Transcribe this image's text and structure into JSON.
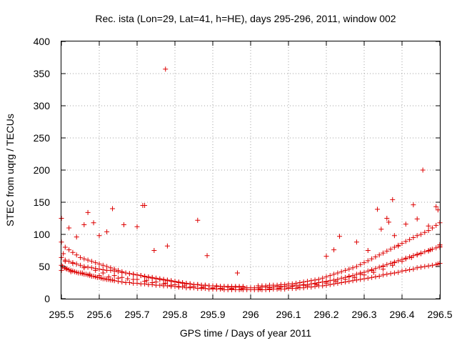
{
  "chart_data": {
    "type": "scatter",
    "title": "Rec. ista (Lon=29, Lat=41, h=HE), days 295-296, 2011, window 002",
    "xlabel": "GPS time / Days of year 2011",
    "ylabel": "STEC from uqrg / TECUs",
    "xlim": [
      295.5,
      296.5
    ],
    "ylim": [
      0,
      400
    ],
    "xticks": [
      "295.5",
      "295.6",
      "295.7",
      "295.8",
      "295.9",
      "296",
      "296.1",
      "296.2",
      "296.3",
      "296.4",
      "296.5"
    ],
    "yticks": [
      "0",
      "50",
      "100",
      "150",
      "200",
      "250",
      "300",
      "350",
      "400"
    ],
    "grid": true,
    "legend": "none",
    "marker": "plus",
    "color": "#dd0000",
    "series": [
      {
        "x": [
          295.5,
          295.503,
          295.508,
          295.512,
          295.515,
          295.52,
          295.525,
          295.53,
          295.535,
          295.54,
          295.545,
          295.55,
          295.555,
          295.56,
          295.565,
          295.57,
          295.575,
          295.58,
          295.585,
          295.59,
          295.595,
          295.6,
          295.605,
          295.61,
          295.615,
          295.62,
          295.625,
          295.63,
          295.635,
          295.64,
          295.65,
          295.66,
          295.67,
          295.68,
          295.69,
          295.7,
          295.71,
          295.72,
          295.73,
          295.74,
          295.75,
          295.76,
          295.77,
          295.78,
          295.79,
          295.8,
          295.81,
          295.82,
          295.83,
          295.84,
          295.85,
          295.86,
          295.87,
          295.88,
          295.89,
          295.9,
          295.91,
          295.92,
          295.93,
          295.94,
          295.95,
          295.96,
          295.97,
          295.98,
          295.99,
          296.0,
          296.01,
          296.02,
          296.03,
          296.04,
          296.05,
          296.06,
          296.07,
          296.08,
          296.09,
          296.1,
          296.11,
          296.12,
          296.13,
          296.14,
          296.15,
          296.16,
          296.17,
          296.18,
          296.19,
          296.2,
          296.21,
          296.22,
          296.23,
          296.24,
          296.25,
          296.26,
          296.27,
          296.28,
          296.29,
          296.3,
          296.31,
          296.32,
          296.33,
          296.34,
          296.35,
          296.36,
          296.37,
          296.38,
          296.39,
          296.4,
          296.41,
          296.42,
          296.43,
          296.44,
          296.45,
          296.46,
          296.47,
          296.48,
          296.49,
          296.495,
          296.5
        ],
        "y": [
          52,
          50,
          48,
          47,
          46,
          45,
          44,
          43,
          42,
          41,
          40,
          40,
          39,
          38,
          38,
          37,
          36,
          35,
          35,
          34,
          33,
          33,
          32,
          31,
          31,
          30,
          30,
          29,
          29,
          28,
          27,
          26,
          25,
          25,
          24,
          24,
          23,
          23,
          22,
          22,
          21,
          21,
          20,
          20,
          19,
          19,
          18,
          18,
          17,
          17,
          17,
          16,
          16,
          16,
          15,
          15,
          15,
          15,
          14,
          14,
          14,
          14,
          14,
          14,
          14,
          14,
          14,
          14,
          14,
          14,
          14,
          15,
          15,
          15,
          15,
          16,
          16,
          16,
          17,
          17,
          18,
          18,
          19,
          20,
          20,
          21,
          22,
          23,
          24,
          25,
          26,
          27,
          28,
          29,
          30,
          31,
          32,
          33,
          34,
          35,
          37,
          38,
          39,
          40,
          41,
          43,
          44,
          45,
          46,
          48,
          49,
          50,
          51,
          52,
          53,
          54,
          55
        ]
      },
      {
        "x": [
          295.5,
          295.505,
          295.51,
          295.52,
          295.53,
          295.54,
          295.55,
          295.56,
          295.57,
          295.58,
          295.59,
          295.6,
          295.61,
          295.62,
          295.63,
          295.64,
          295.65,
          295.66,
          295.67,
          295.68,
          295.69,
          295.7,
          295.71,
          295.72,
          295.73,
          295.74,
          295.75,
          295.76,
          295.77,
          295.78,
          295.79,
          295.8,
          295.81,
          295.82,
          295.83,
          295.84,
          295.85,
          295.86,
          295.87,
          295.88,
          295.89,
          295.9,
          295.91,
          295.92,
          295.93,
          295.94,
          295.95,
          295.96,
          295.97,
          295.98,
          295.99,
          296.0,
          296.01,
          296.02,
          296.03,
          296.04,
          296.05,
          296.06,
          296.07,
          296.08,
          296.09,
          296.1,
          296.11,
          296.12,
          296.13,
          296.14,
          296.15,
          296.16,
          296.17,
          296.18,
          296.19,
          296.2,
          296.21,
          296.22,
          296.23,
          296.24,
          296.25,
          296.26,
          296.27,
          296.28,
          296.29,
          296.3,
          296.31,
          296.32,
          296.33,
          296.34,
          296.35,
          296.36,
          296.37,
          296.38,
          296.39,
          296.4,
          296.41,
          296.42,
          296.43,
          296.44,
          296.45,
          296.46,
          296.47,
          296.48,
          296.49,
          296.5
        ],
        "y": [
          64,
          70,
          60,
          58,
          56,
          54,
          52,
          50,
          49,
          48,
          47,
          46,
          45,
          44,
          44,
          43,
          42,
          41,
          40,
          39,
          38,
          37,
          36,
          35,
          34,
          33,
          32,
          31,
          30,
          29,
          28,
          27,
          26,
          25,
          24,
          23,
          22,
          22,
          21,
          21,
          20,
          20,
          19,
          19,
          19,
          18,
          18,
          18,
          18,
          18,
          17,
          17,
          17,
          17,
          18,
          18,
          18,
          18,
          19,
          19,
          19,
          20,
          20,
          21,
          21,
          22,
          22,
          23,
          24,
          25,
          26,
          27,
          28,
          29,
          30,
          32,
          33,
          35,
          36,
          38,
          40,
          41,
          43,
          45,
          47,
          49,
          51,
          53,
          55,
          57,
          59,
          61,
          63,
          65,
          67,
          69,
          71,
          73,
          75,
          77,
          79,
          80
        ]
      },
      {
        "x": [
          295.5,
          295.51,
          295.52,
          295.53,
          295.54,
          295.55,
          295.56,
          295.57,
          295.58,
          295.59,
          295.6,
          295.61,
          295.62,
          295.63,
          295.64,
          295.65,
          295.66,
          295.67,
          295.68,
          295.69,
          295.7,
          295.71,
          295.72,
          295.73,
          295.74,
          295.75,
          295.76,
          295.77,
          295.78,
          295.79,
          295.8,
          295.81,
          295.82,
          295.83,
          295.84,
          295.85,
          295.86,
          295.87,
          295.88,
          295.89,
          295.9,
          295.91,
          295.92,
          295.93,
          295.94,
          295.95,
          295.96,
          295.97,
          295.98,
          296.02,
          296.03,
          296.04,
          296.05,
          296.06,
          296.07,
          296.08,
          296.09,
          296.1,
          296.11,
          296.12,
          296.13,
          296.14,
          296.15,
          296.16,
          296.17,
          296.18,
          296.19,
          296.2,
          296.21,
          296.22,
          296.23,
          296.24,
          296.25,
          296.26,
          296.27,
          296.28,
          296.29,
          296.3,
          296.31,
          296.32,
          296.33,
          296.34,
          296.35,
          296.36,
          296.37,
          296.38,
          296.39,
          296.4,
          296.41,
          296.42,
          296.43,
          296.44,
          296.45,
          296.46,
          296.47,
          296.48,
          296.49,
          296.5
        ],
        "y": [
          88,
          80,
          76,
          72,
          68,
          64,
          62,
          60,
          58,
          56,
          54,
          52,
          50,
          48,
          46,
          44,
          42,
          40,
          39,
          38,
          37,
          36,
          34,
          33,
          32,
          31,
          30,
          29,
          28,
          27,
          26,
          25,
          24,
          23,
          23,
          22,
          22,
          21,
          21,
          20,
          20,
          20,
          19,
          19,
          19,
          19,
          19,
          19,
          19,
          20,
          20,
          20,
          21,
          21,
          21,
          22,
          22,
          23,
          23,
          24,
          25,
          26,
          27,
          28,
          29,
          30,
          32,
          34,
          36,
          38,
          40,
          42,
          44,
          46,
          48,
          50,
          53,
          56,
          59,
          62,
          65,
          68,
          71,
          74,
          77,
          80,
          83,
          86,
          89,
          92,
          95,
          98,
          100,
          103,
          106,
          110,
          114,
          118
        ]
      },
      {
        "x": [
          295.51,
          295.53,
          295.56,
          295.59,
          295.61,
          295.64,
          295.66,
          295.69,
          295.72,
          295.74,
          295.77,
          295.79,
          295.81,
          295.84,
          295.87,
          295.9,
          295.92,
          295.95,
          295.98,
          296.02,
          296.05,
          296.08,
          296.11,
          296.14,
          296.17,
          296.2,
          296.23,
          296.26,
          296.29,
          296.32,
          296.35,
          296.38,
          296.41,
          296.44,
          296.47,
          296.5
        ],
        "y": [
          58,
          55,
          48,
          44,
          40,
          36,
          33,
          30,
          27,
          25,
          23,
          21,
          19,
          18,
          17,
          16,
          16,
          16,
          16,
          17,
          17,
          18,
          19,
          21,
          23,
          26,
          30,
          34,
          38,
          44,
          50,
          56,
          62,
          68,
          74,
          82
        ]
      },
      {
        "x": [
          295.5,
          295.525,
          295.555,
          295.575,
          295.6,
          295.625,
          295.65,
          295.675,
          295.7,
          295.725,
          295.75,
          295.775,
          295.8,
          295.825,
          295.85,
          295.875,
          295.9,
          295.925,
          295.95,
          295.975,
          296.025,
          296.05,
          296.075,
          296.1,
          296.125,
          296.15,
          296.175,
          296.2,
          296.225,
          296.25,
          296.275,
          296.3,
          296.325,
          296.35,
          296.375,
          296.4,
          296.425,
          296.45,
          296.475,
          296.5
        ],
        "y": [
          44,
          42,
          40,
          38,
          36,
          34,
          32,
          31,
          30,
          28,
          26,
          24,
          22,
          20,
          19,
          18,
          17,
          16,
          15,
          15,
          15,
          15,
          16,
          17,
          18,
          20,
          22,
          24,
          27,
          30,
          33,
          37,
          41,
          46,
          52,
          58,
          64,
          70,
          76,
          84
        ]
      },
      {
        "x": [
          295.5,
          295.52,
          295.54,
          295.56,
          295.57,
          295.585,
          295.6,
          295.62,
          295.635,
          295.665,
          295.7,
          295.715,
          295.72,
          295.745,
          295.775,
          295.78,
          295.86,
          295.885,
          295.965,
          296.2,
          296.22,
          296.235,
          296.28,
          296.31,
          296.335,
          296.345,
          296.36,
          296.365,
          296.375,
          296.38,
          296.39,
          296.41,
          296.43,
          296.44,
          296.455,
          296.47,
          296.49,
          296.495
        ],
        "y": [
          125,
          110,
          96,
          115,
          134,
          118,
          98,
          104,
          140,
          115,
          112,
          145,
          145,
          75,
          357,
          82,
          122,
          67,
          40,
          66,
          76,
          97,
          88,
          75,
          139,
          108,
          125,
          119,
          154,
          98,
          82,
          116,
          146,
          124,
          200,
          113,
          143,
          138
        ]
      }
    ]
  }
}
